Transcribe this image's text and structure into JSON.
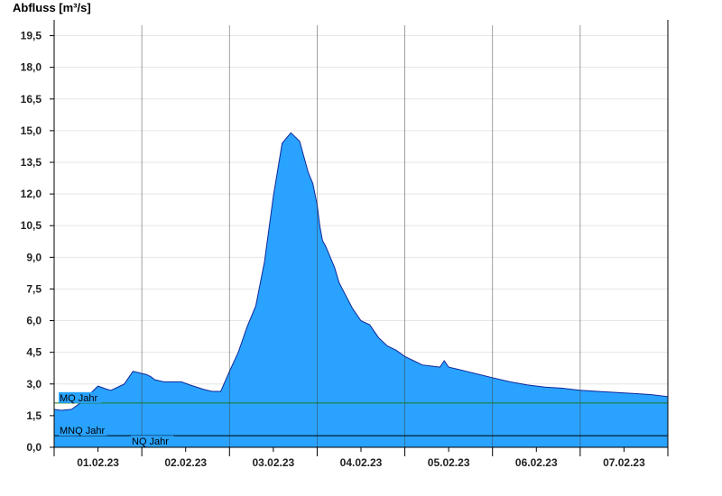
{
  "chart_data": {
    "type": "area",
    "ylabel": "Abfluss [m³/s]",
    "ylim": [
      0,
      20.25
    ],
    "y_ticks": [
      {
        "value": 0,
        "label": "0,0"
      },
      {
        "value": 1.5,
        "label": "1,5"
      },
      {
        "value": 3,
        "label": "3,0"
      },
      {
        "value": 4.5,
        "label": "4,5"
      },
      {
        "value": 6,
        "label": "6,0"
      },
      {
        "value": 7.5,
        "label": "7,5"
      },
      {
        "value": 9,
        "label": "9,0"
      },
      {
        "value": 10.5,
        "label": "10,5"
      },
      {
        "value": 12,
        "label": "12,0"
      },
      {
        "value": 13.5,
        "label": "13,5"
      },
      {
        "value": 15,
        "label": "15,0"
      },
      {
        "value": 16.5,
        "label": "16,5"
      },
      {
        "value": 18,
        "label": "18,0"
      },
      {
        "value": 19.5,
        "label": "19,5"
      }
    ],
    "x_ticks": [
      {
        "label": "01.02.23"
      },
      {
        "label": "02.02.23"
      },
      {
        "label": "03.02.23"
      },
      {
        "label": "04.02.23"
      },
      {
        "label": "05.02.23"
      },
      {
        "label": "06.02.23"
      },
      {
        "label": "07.02.23"
      }
    ],
    "xlim_days": [
      0,
      7
    ],
    "series": [
      {
        "color": "#29a3ff",
        "x": [
          0,
          0.08,
          0.2,
          0.3,
          0.4,
          0.5,
          0.6,
          0.65,
          0.7,
          0.8,
          0.9,
          1.0,
          1.05,
          1.1,
          1.15,
          1.25,
          1.35,
          1.45,
          1.55,
          1.7,
          1.8,
          1.9,
          2.0,
          2.1,
          2.2,
          2.3,
          2.4,
          2.5,
          2.6,
          2.7,
          2.8,
          2.9,
          2.95,
          3.0,
          3.03,
          3.06,
          3.1,
          3.15,
          3.2,
          3.25,
          3.3,
          3.4,
          3.5,
          3.6,
          3.7,
          3.8,
          3.9,
          4.0,
          4.1,
          4.2,
          4.3,
          4.4,
          4.45,
          4.5,
          4.6,
          4.7,
          4.8,
          5.0,
          5.2,
          5.4,
          5.6,
          5.8,
          6.0,
          6.2,
          6.4,
          6.6,
          6.8,
          7.0
        ],
        "y": [
          1.8,
          1.75,
          1.8,
          2.1,
          2.5,
          2.9,
          2.75,
          2.7,
          2.8,
          3.0,
          3.6,
          3.5,
          3.45,
          3.35,
          3.2,
          3.1,
          3.1,
          3.1,
          2.95,
          2.75,
          2.65,
          2.65,
          3.6,
          4.5,
          5.7,
          6.7,
          8.8,
          11.9,
          14.4,
          14.9,
          14.5,
          13.0,
          12.5,
          11.5,
          10.5,
          9.8,
          9.5,
          9.0,
          8.5,
          7.8,
          7.4,
          6.6,
          6.0,
          5.8,
          5.2,
          4.8,
          4.6,
          4.3,
          4.1,
          3.9,
          3.85,
          3.8,
          4.1,
          3.8,
          3.7,
          3.6,
          3.5,
          3.3,
          3.1,
          2.95,
          2.85,
          2.8,
          2.7,
          2.65,
          2.6,
          2.55,
          2.5,
          2.4
        ]
      }
    ],
    "reference_lines": [
      {
        "label": "MQ Jahr",
        "value": 2.1,
        "color": "#1f7a1f"
      },
      {
        "label": "MNQ Jahr",
        "value": 0.55,
        "color": "#000000"
      },
      {
        "label": "NQ Jahr",
        "value": 0.55,
        "color": "#000000"
      }
    ],
    "grid": true
  }
}
